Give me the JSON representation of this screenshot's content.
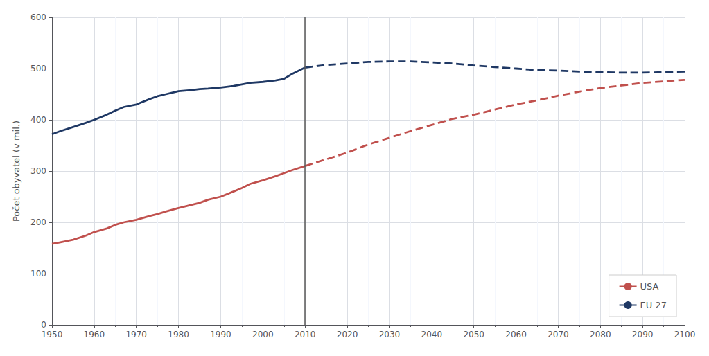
{
  "chart_data": {
    "type": "line",
    "ylabel": "Počet obyvatel (v mil.)",
    "xlim": [
      1950,
      2100
    ],
    "xticks": [
      1950,
      1960,
      1970,
      1980,
      1990,
      2000,
      2010,
      2020,
      2030,
      2040,
      2050,
      2060,
      2070,
      2080,
      2090,
      2100
    ],
    "ylim": [
      0,
      600
    ],
    "yticks": [
      0,
      100,
      200,
      300,
      400,
      500,
      600
    ],
    "grid": true,
    "legend": "lower right",
    "vline": {
      "value": 2010,
      "color": "#595959"
    },
    "series": [
      {
        "name": "USA",
        "color": "#c0504d",
        "line_style": "solid",
        "x": [
          1950,
          1952,
          1955,
          1958,
          1960,
          1963,
          1965,
          1967,
          1970,
          1973,
          1975,
          1977,
          1980,
          1983,
          1985,
          1987,
          1990,
          1993,
          1995,
          1997,
          2000,
          2003,
          2005,
          2007,
          2010
        ],
        "values": [
          158,
          161,
          166,
          174,
          181,
          188,
          195,
          200,
          205,
          212,
          216,
          221,
          228,
          234,
          238,
          244,
          250,
          260,
          267,
          275,
          282,
          290,
          296,
          302,
          310
        ]
      },
      {
        "name": "USA",
        "color": "#c0504d",
        "line_style": "dashed",
        "x": [
          2010,
          2015,
          2020,
          2025,
          2030,
          2035,
          2040,
          2045,
          2050,
          2055,
          2060,
          2065,
          2070,
          2075,
          2080,
          2085,
          2090,
          2095,
          2100
        ],
        "values": [
          310,
          323,
          336,
          352,
          365,
          378,
          390,
          402,
          410,
          420,
          430,
          438,
          447,
          455,
          462,
          467,
          472,
          475,
          478
        ]
      },
      {
        "name": "EU 27",
        "color": "#1f3864",
        "line_style": "solid",
        "x": [
          1950,
          1952,
          1955,
          1958,
          1960,
          1963,
          1965,
          1967,
          1970,
          1973,
          1975,
          1977,
          1980,
          1983,
          1985,
          1987,
          1990,
          1993,
          1995,
          1997,
          2000,
          2003,
          2005,
          2007,
          2010
        ],
        "values": [
          372,
          378,
          386,
          394,
          400,
          410,
          418,
          425,
          430,
          440,
          446,
          450,
          456,
          458,
          460,
          461,
          463,
          466,
          469,
          472,
          474,
          477,
          480,
          490,
          502
        ]
      },
      {
        "name": "EU 27",
        "color": "#1f3864",
        "line_style": "dashed",
        "x": [
          2010,
          2015,
          2020,
          2025,
          2030,
          2035,
          2040,
          2045,
          2050,
          2055,
          2060,
          2065,
          2070,
          2075,
          2080,
          2085,
          2090,
          2095,
          2100
        ],
        "values": [
          502,
          507,
          510,
          513,
          514,
          514,
          512,
          510,
          506,
          503,
          500,
          497,
          496,
          494,
          493,
          492,
          492,
          493,
          494
        ]
      }
    ]
  }
}
